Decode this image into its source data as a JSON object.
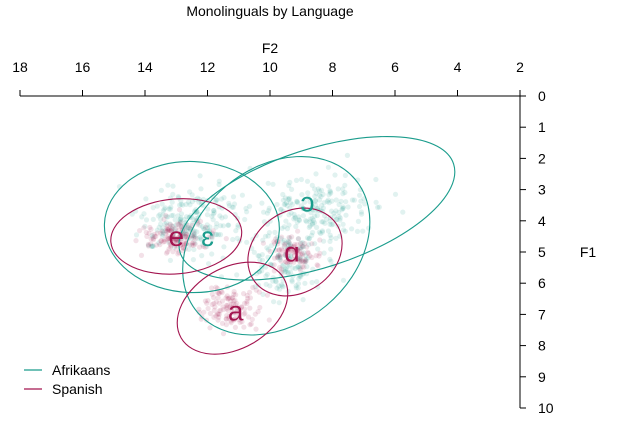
{
  "chart_data": {
    "type": "scatter",
    "title": "Monolinguals by Language",
    "xlabel": "F2",
    "ylabel": "F1",
    "x_reversed": true,
    "y_reversed": true,
    "xlim": [
      18,
      2
    ],
    "ylim": [
      0,
      10
    ],
    "x_ticks": [
      18,
      16,
      14,
      12,
      10,
      8,
      6,
      4,
      2
    ],
    "y_ticks": [
      0,
      1,
      2,
      3,
      4,
      5,
      6,
      7,
      8,
      9,
      10
    ],
    "legend_position": "bottom-left",
    "series": [
      {
        "name": "Afrikaans",
        "color": "#1a9c8c",
        "ellipses": [
          {
            "vowel": "ɛ",
            "cx": 12.5,
            "cy": 4.2,
            "rx": 2.8,
            "ry": 2.1,
            "rotate_deg": 2
          },
          {
            "vowel": "ɔ",
            "cx": 8.5,
            "cy": 3.6,
            "rx": 4.6,
            "ry": 1.9,
            "rotate_deg": -18
          },
          {
            "vowel": "ɑ",
            "cx": 9.8,
            "cy": 4.8,
            "rx": 3.3,
            "ry": 2.5,
            "rotate_deg": -40
          }
        ],
        "labels": [
          {
            "text": "ɛ",
            "x": 12.0,
            "y": 4.8
          },
          {
            "text": "ɔ",
            "x": 8.8,
            "y": 3.7
          }
        ],
        "cloud": [
          {
            "cx": 12.5,
            "cy": 4.0,
            "sx": 1.7,
            "sy": 1.1,
            "n": 220
          },
          {
            "cx": 8.5,
            "cy": 3.6,
            "sx": 1.9,
            "sy": 1.0,
            "n": 200
          },
          {
            "cx": 9.5,
            "cy": 5.4,
            "sx": 1.3,
            "sy": 1.0,
            "n": 140
          }
        ]
      },
      {
        "name": "Spanish",
        "color": "#a3144f",
        "ellipses": [
          {
            "vowel": "e",
            "cx": 13.0,
            "cy": 4.5,
            "rx": 2.1,
            "ry": 1.2,
            "rotate_deg": -5
          },
          {
            "vowel": "a",
            "cx": 11.2,
            "cy": 6.8,
            "rx": 1.9,
            "ry": 1.3,
            "rotate_deg": -30
          },
          {
            "vowel": "ɑ",
            "cx": 9.2,
            "cy": 5.0,
            "rx": 1.6,
            "ry": 1.3,
            "rotate_deg": -35
          }
        ],
        "labels": [
          {
            "text": "e",
            "x": 13.0,
            "y": 4.8
          },
          {
            "text": "a",
            "x": 11.1,
            "y": 7.2
          },
          {
            "text": "ɑ",
            "x": 9.3,
            "y": 5.3
          }
        ],
        "cloud": [
          {
            "cx": 13.0,
            "cy": 4.5,
            "sx": 1.1,
            "sy": 0.6,
            "n": 140
          },
          {
            "cx": 11.2,
            "cy": 6.8,
            "sx": 0.9,
            "sy": 0.7,
            "n": 120
          },
          {
            "cx": 9.3,
            "cy": 5.0,
            "sx": 0.8,
            "sy": 0.6,
            "n": 100
          }
        ]
      }
    ]
  }
}
